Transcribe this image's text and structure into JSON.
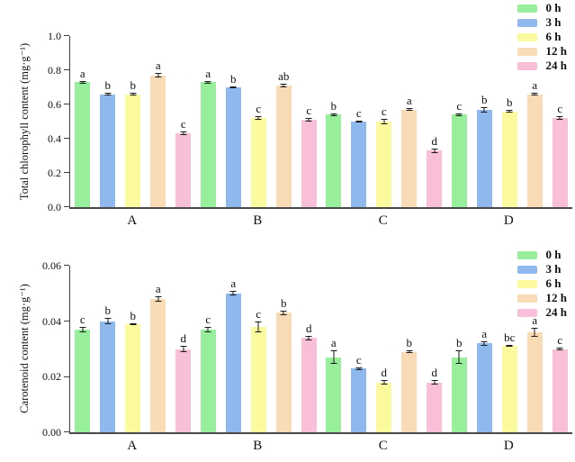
{
  "figure": {
    "background": "#ffffff",
    "axis_color": "#3d3d3d",
    "error_bar_color": "#1a1a1a"
  },
  "chart_data": [
    {
      "type": "bar",
      "title": "",
      "xlabel": "",
      "ylabel": "Total chlorophyll content (mg·g⁻¹)",
      "ylim": [
        0,
        1.0
      ],
      "yticks": [
        0,
        0.2,
        0.4,
        0.6,
        0.8,
        1.0
      ],
      "ytick_labels": [
        "0.0",
        "0.2",
        "0.4",
        "0.6",
        "0.8",
        "1.0"
      ],
      "categories": [
        "A",
        "B",
        "C",
        "D"
      ],
      "grid": false,
      "legend_position": "top-right",
      "series": [
        {
          "name": "0 h",
          "color": "#97EE9B",
          "values": [
            0.73,
            0.73,
            0.54,
            0.54
          ],
          "errors": [
            0.008,
            0.008,
            0.01,
            0.01
          ],
          "sig_letters": [
            "a",
            "a",
            "b",
            "c"
          ]
        },
        {
          "name": "3 h",
          "color": "#8FB8EF",
          "values": [
            0.66,
            0.7,
            0.5,
            0.57
          ],
          "errors": [
            0.008,
            0.006,
            0.006,
            0.015
          ],
          "sig_letters": [
            "b",
            "b",
            "c",
            "b"
          ]
        },
        {
          "name": "6 h",
          "color": "#FBFA9F",
          "values": [
            0.66,
            0.52,
            0.5,
            0.56
          ],
          "errors": [
            0.006,
            0.012,
            0.015,
            0.006
          ],
          "sig_letters": [
            "b",
            "c",
            "c",
            "b"
          ]
        },
        {
          "name": "12 h",
          "color": "#F9DBB5",
          "values": [
            0.77,
            0.71,
            0.57,
            0.66
          ],
          "errors": [
            0.012,
            0.012,
            0.008,
            0.006
          ],
          "sig_letters": [
            "a",
            "ab",
            "a",
            "a"
          ]
        },
        {
          "name": "24 h",
          "color": "#F9BFD9",
          "values": [
            0.43,
            0.51,
            0.33,
            0.52
          ],
          "errors": [
            0.01,
            0.01,
            0.012,
            0.01
          ],
          "sig_letters": [
            "c",
            "c",
            "d",
            "c"
          ]
        }
      ]
    },
    {
      "type": "bar",
      "title": "",
      "xlabel": "",
      "ylabel": "Carotenoid content (mg·g⁻¹)",
      "ylim": [
        0,
        0.06
      ],
      "yticks": [
        0,
        0.02,
        0.04,
        0.06
      ],
      "ytick_labels": [
        "0.00",
        "0.02",
        "0.04",
        "0.06"
      ],
      "categories": [
        "A",
        "B",
        "C",
        "D"
      ],
      "grid": false,
      "legend_position": "top-right",
      "series": [
        {
          "name": "0 h",
          "color": "#97EE9B",
          "values": [
            0.037,
            0.037,
            0.027,
            0.027
          ],
          "errors": [
            0.001,
            0.001,
            0.0025,
            0.0025
          ],
          "sig_letters": [
            "c",
            "c",
            "a",
            "b"
          ]
        },
        {
          "name": "3 h",
          "color": "#8FB8EF",
          "values": [
            0.04,
            0.05,
            0.023,
            0.032
          ],
          "errors": [
            0.0012,
            0.0008,
            0.0005,
            0.0008
          ],
          "sig_letters": [
            "b",
            "a",
            "c",
            "a"
          ]
        },
        {
          "name": "6 h",
          "color": "#FBFA9F",
          "values": [
            0.039,
            0.038,
            0.018,
            0.031
          ],
          "errors": [
            0.0004,
            0.002,
            0.0008,
            0.0003
          ],
          "sig_letters": [
            "b",
            "c",
            "d",
            "bc"
          ]
        },
        {
          "name": "12 h",
          "color": "#F9DBB5",
          "values": [
            0.048,
            0.043,
            0.029,
            0.036
          ],
          "errors": [
            0.001,
            0.0008,
            0.0005,
            0.0015
          ],
          "sig_letters": [
            "a",
            "b",
            "b",
            "a"
          ]
        },
        {
          "name": "24 h",
          "color": "#F9BFD9",
          "values": [
            0.03,
            0.034,
            0.018,
            0.03
          ],
          "errors": [
            0.001,
            0.0008,
            0.0008,
            0.0005
          ],
          "sig_letters": [
            "d",
            "d",
            "d",
            "c"
          ]
        }
      ]
    }
  ]
}
